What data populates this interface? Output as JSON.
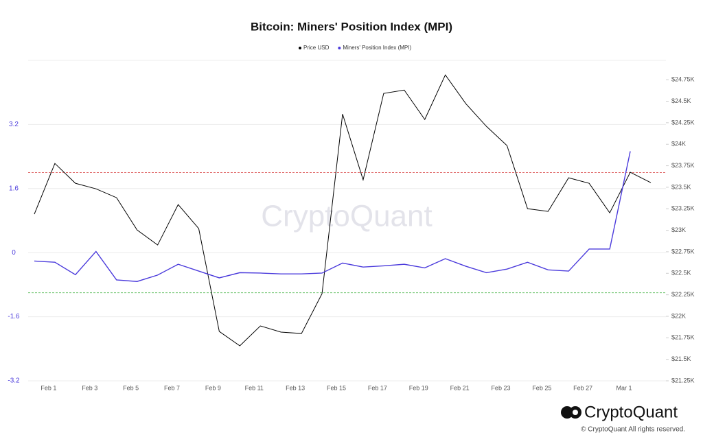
{
  "chart_data": {
    "type": "line",
    "title": "Bitcoin: Miners' Position Index (MPI)",
    "categories": [
      null,
      "Feb 1",
      null,
      "Feb 3",
      null,
      "Feb 5",
      null,
      "Feb 7",
      null,
      "Feb 9",
      null,
      "Feb 11",
      null,
      "Feb 13",
      null,
      "Feb 15",
      null,
      "Feb 17",
      null,
      "Feb 19",
      null,
      "Feb 21",
      null,
      "Feb 23",
      null,
      "Feb 25",
      null,
      "Feb 27",
      null,
      "Mar 1",
      null
    ],
    "series": [
      {
        "name": "Price USD",
        "color": "#000000",
        "axis": "y2",
        "values": [
          23188,
          23777,
          23546,
          23482,
          23379,
          23004,
          22829,
          23299,
          23020,
          21824,
          21657,
          21888,
          21816,
          21800,
          22263,
          24351,
          23586,
          24591,
          24630,
          24288,
          24806,
          24471,
          24208,
          23985,
          23251,
          23219,
          23610,
          23546,
          23203,
          23674,
          23554
        ]
      },
      {
        "name": "Miners' Position Index (MPI)",
        "color": "#4b3bdc",
        "values": [
          -0.21,
          -0.24,
          -0.55,
          0.03,
          -0.68,
          -0.72,
          -0.56,
          -0.29,
          -0.46,
          -0.63,
          -0.5,
          -0.51,
          -0.53,
          -0.53,
          -0.51,
          -0.26,
          -0.36,
          -0.33,
          -0.29,
          -0.38,
          -0.15,
          -0.34,
          -0.5,
          -0.41,
          -0.24,
          -0.43,
          -0.46,
          0.09,
          0.09,
          2.53,
          null
        ]
      }
    ],
    "ylim": [
      -3.2,
      4.8
    ],
    "yticks": [
      3.2,
      1.6,
      0,
      -1.6,
      -3.2
    ],
    "y2lim": [
      21250,
      24975
    ],
    "y2ticks": [
      {
        "value": 24750,
        "label": "$24.75K"
      },
      {
        "value": 24500,
        "label": "$24.5K"
      },
      {
        "value": 24250,
        "label": "$24.25K"
      },
      {
        "value": 24000,
        "label": "$24K"
      },
      {
        "value": 23750,
        "label": "$23.75K"
      },
      {
        "value": 23500,
        "label": "$23.5K"
      },
      {
        "value": 23250,
        "label": "$23.25K"
      },
      {
        "value": 23000,
        "label": "$23K"
      },
      {
        "value": 22750,
        "label": "$22.75K"
      },
      {
        "value": 22500,
        "label": "$22.5K"
      },
      {
        "value": 22250,
        "label": "$22.25K"
      },
      {
        "value": 22000,
        "label": "$22K"
      },
      {
        "value": 21750,
        "label": "$21.75K"
      },
      {
        "value": 21500,
        "label": "$21.5K"
      },
      {
        "value": 21250,
        "label": "$21.25K"
      }
    ],
    "reference_lines": [
      {
        "value": 2.0,
        "color": "#e06666"
      },
      {
        "value": -1.0,
        "color": "#6ac26a"
      }
    ],
    "grid": true,
    "legend": "top",
    "watermark": "CryptoQuant",
    "brand": "CryptoQuant",
    "copyright": "© CryptoQuant All rights reserved."
  }
}
